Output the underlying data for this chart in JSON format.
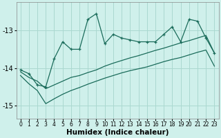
{
  "xlabel": "Humidex (Indice chaleur)",
  "ylabel": "",
  "bg_color": "#cff0eb",
  "grid_color": "#aad8d0",
  "line_color": "#1a6b5a",
  "x_values": [
    0,
    1,
    2,
    3,
    4,
    5,
    6,
    7,
    8,
    9,
    10,
    11,
    12,
    13,
    14,
    15,
    16,
    17,
    18,
    19,
    20,
    21,
    22,
    23
  ],
  "y_main": [
    -14.05,
    -14.15,
    -14.45,
    -14.5,
    -13.75,
    -13.3,
    -13.5,
    -13.5,
    -12.7,
    -12.55,
    -13.35,
    -13.1,
    -13.2,
    -13.25,
    -13.3,
    -13.3,
    -13.3,
    -13.1,
    -12.9,
    -13.3,
    -12.7,
    -12.75,
    -13.2,
    -13.6
  ],
  "y_line1": [
    -14.1,
    -14.25,
    -14.35,
    -14.55,
    -14.45,
    -14.35,
    -14.25,
    -14.2,
    -14.12,
    -14.05,
    -13.95,
    -13.87,
    -13.8,
    -13.73,
    -13.67,
    -13.6,
    -13.53,
    -13.47,
    -13.4,
    -13.33,
    -13.27,
    -13.2,
    -13.13,
    -13.6
  ],
  "y_line2": [
    -14.2,
    -14.42,
    -14.6,
    -14.95,
    -14.82,
    -14.7,
    -14.6,
    -14.52,
    -14.43,
    -14.35,
    -14.27,
    -14.2,
    -14.13,
    -14.07,
    -14.02,
    -13.97,
    -13.9,
    -13.83,
    -13.77,
    -13.72,
    -13.65,
    -13.58,
    -13.52,
    -13.95
  ],
  "ylim": [
    -15.35,
    -12.25
  ],
  "xlim": [
    -0.5,
    23.5
  ],
  "yticks": [
    -15,
    -14,
    -13
  ],
  "xticks": [
    0,
    1,
    2,
    3,
    4,
    5,
    6,
    7,
    8,
    9,
    10,
    11,
    12,
    13,
    14,
    15,
    16,
    17,
    18,
    19,
    20,
    21,
    22,
    23
  ],
  "tick_fontsize": 6.5,
  "xlabel_fontsize": 7.5
}
